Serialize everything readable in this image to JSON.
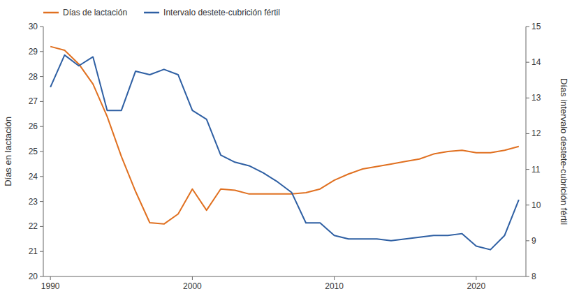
{
  "chart_data": {
    "type": "line",
    "x": [
      1990,
      1991,
      1992,
      1993,
      1994,
      1995,
      1996,
      1997,
      1998,
      1999,
      2000,
      2001,
      2002,
      2003,
      2004,
      2005,
      2006,
      2007,
      2008,
      2009,
      2010,
      2011,
      2012,
      2013,
      2014,
      2015,
      2016,
      2017,
      2018,
      2019,
      2020,
      2021,
      2022,
      2023
    ],
    "series": [
      {
        "name": "Días de lactación",
        "color": "#E07020",
        "values": [
          29.2,
          29.05,
          28.5,
          27.7,
          26.4,
          24.8,
          23.4,
          22.15,
          22.1,
          22.5,
          23.5,
          22.65,
          23.5,
          23.45,
          23.3,
          23.3,
          23.3,
          23.3,
          23.35,
          23.5,
          23.85,
          24.1,
          24.3,
          24.4,
          24.5,
          24.6,
          24.7,
          24.9,
          25.0,
          25.05,
          24.95,
          24.95,
          25.05,
          25.2
        ]
      },
      {
        "name": "Intervalo destete-cubrición fértil",
        "color": "#2E5FA3",
        "axis": "y2",
        "values": [
          13.3,
          14.2,
          13.9,
          14.15,
          12.65,
          12.65,
          13.75,
          13.65,
          13.8,
          13.65,
          12.65,
          12.4,
          11.4,
          11.2,
          11.1,
          10.9,
          10.65,
          10.35,
          9.5,
          9.5,
          9.15,
          9.05,
          9.05,
          9.05,
          9.0,
          9.05,
          9.1,
          9.15,
          9.15,
          9.2,
          8.85,
          8.75,
          9.15,
          10.15
        ]
      }
    ],
    "ylabel": "Días en lactación",
    "y2label": "Días intervalo destete-cubrición fértil",
    "xlim": [
      1989.5,
      2023.5
    ],
    "xticks": [
      1990,
      2000,
      2010,
      2020
    ],
    "ylim": [
      20,
      30
    ],
    "yticks": [
      20,
      21,
      22,
      23,
      24,
      25,
      26,
      27,
      28,
      29,
      30
    ],
    "y2lim": [
      8,
      15
    ],
    "y2ticks": [
      8,
      9,
      10,
      11,
      12,
      13,
      14,
      15
    ],
    "grid": false,
    "legend": "upper left"
  }
}
